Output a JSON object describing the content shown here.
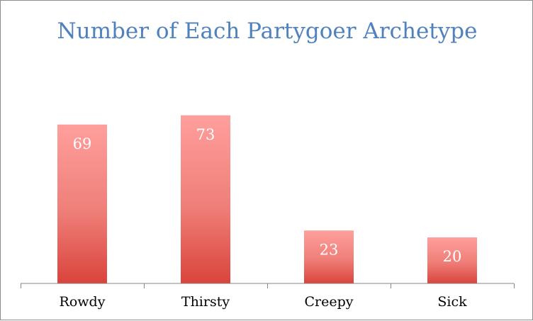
{
  "chart_data": {
    "type": "bar",
    "title": "Number of Each Partygoer Archetype",
    "categories": [
      "Rowdy",
      "Thirsty",
      "Creepy",
      "Sick"
    ],
    "values": [
      69,
      73,
      23,
      20
    ],
    "xlabel": "",
    "ylabel": "",
    "ylim": [
      0,
      80
    ],
    "grid": false,
    "legend": "none",
    "data_labels": true,
    "colors": {
      "bar_top": "#ff9f9c",
      "bar_bottom": "#d9443c",
      "label": "#ffffff",
      "title": "#4f81bd",
      "axis": "#868686",
      "tick_label": "#000000"
    }
  }
}
